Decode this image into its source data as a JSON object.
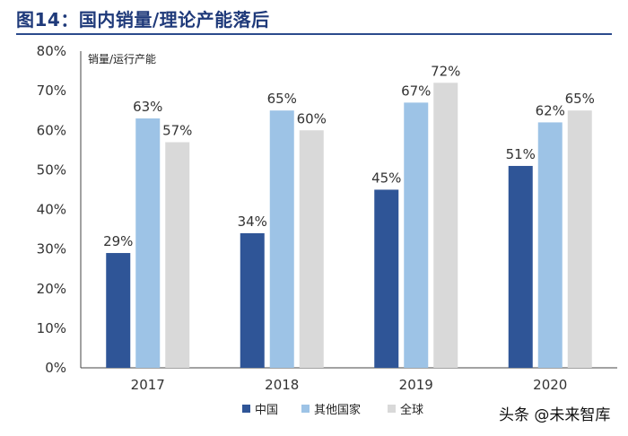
{
  "header": {
    "title": "图14：国内销量/理论产能落后"
  },
  "watermark": {
    "text": "头条 @未来智库"
  },
  "chart_data": {
    "type": "bar",
    "ylabel": "销量/运行产能",
    "categories": [
      "2017",
      "2018",
      "2019",
      "2020"
    ],
    "ylim": [
      0,
      80
    ],
    "yticks": [
      0,
      10,
      20,
      30,
      40,
      50,
      60,
      70,
      80
    ],
    "ytick_suffix": "%",
    "grid": false,
    "legend_position": "bottom",
    "series": [
      {
        "name": "中国",
        "color": "#2f5597",
        "values": [
          29,
          34,
          45,
          51
        ],
        "labels": [
          "29%",
          "34%",
          "45%",
          "51%"
        ]
      },
      {
        "name": "其他国家",
        "color": "#9dc3e6",
        "values": [
          63,
          65,
          67,
          62
        ],
        "labels": [
          "63%",
          "65%",
          "67%",
          "62%"
        ]
      },
      {
        "name": "全球",
        "color": "#d9d9d9",
        "values": [
          57,
          60,
          72,
          65
        ],
        "labels": [
          "57%",
          "60%",
          "72%",
          "65%"
        ]
      }
    ]
  }
}
